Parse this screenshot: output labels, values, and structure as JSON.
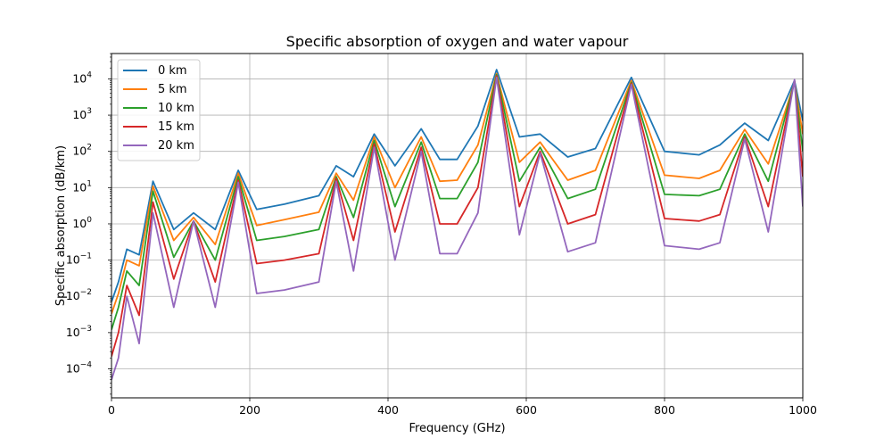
{
  "chart_data": {
    "type": "line",
    "title": "Specific absorption of oxygen and water vapour",
    "xlabel": "Frequency (GHz)",
    "ylabel": "Specific absorption (dB/km)",
    "xlim": [
      0,
      1000
    ],
    "ylim_log10": [
      -4.8,
      4.7
    ],
    "yscale": "log",
    "xticks": [
      0,
      200,
      400,
      600,
      800,
      1000
    ],
    "xtick_labels": [
      "0",
      "200",
      "400",
      "600",
      "800",
      "1000"
    ],
    "ytick_exponents": [
      -4,
      -3,
      -2,
      -1,
      0,
      1,
      2,
      3,
      4
    ],
    "ytick_base": "10",
    "grid": true,
    "legend_position": "top-left",
    "colors": [
      "#1f77b4",
      "#ff7f0e",
      "#2ca02c",
      "#d62728",
      "#9467bd"
    ],
    "series": [
      {
        "name": "0 km",
        "x": [
          0,
          10,
          22.2,
          40,
          60,
          90,
          118.75,
          150,
          183.3,
          210,
          250,
          300,
          325,
          350,
          380,
          410,
          448,
          475,
          500,
          530,
          557,
          590,
          620,
          660,
          700,
          752,
          800,
          850,
          880,
          916,
          950,
          988,
          1000
        ],
        "y": [
          0.007,
          0.025,
          0.2,
          0.14,
          15,
          0.7,
          2,
          0.7,
          30,
          2.5,
          3.5,
          6,
          40,
          20,
          300,
          40,
          420,
          60,
          60,
          500,
          18000,
          250,
          300,
          70,
          120,
          11000,
          100,
          80,
          150,
          600,
          200,
          9000,
          700
        ]
      },
      {
        "name": "5 km",
        "x": [
          0,
          10,
          22.2,
          40,
          60,
          90,
          118.75,
          150,
          183.3,
          210,
          250,
          300,
          325,
          350,
          380,
          410,
          448,
          475,
          500,
          530,
          557,
          590,
          620,
          660,
          700,
          752,
          800,
          850,
          880,
          916,
          950,
          988,
          1000
        ],
        "y": [
          0.0033,
          0.012,
          0.1,
          0.07,
          11,
          0.35,
          1.5,
          0.27,
          25,
          0.9,
          1.3,
          2.1,
          25,
          4.5,
          250,
          10,
          250,
          15,
          16,
          150,
          14000,
          50,
          180,
          16,
          30,
          9000,
          22,
          18,
          30,
          400,
          45,
          8000,
          300
        ]
      },
      {
        "name": "10 km",
        "x": [
          0,
          10,
          22.2,
          40,
          60,
          90,
          118.75,
          150,
          183.3,
          210,
          250,
          300,
          325,
          350,
          380,
          410,
          448,
          475,
          500,
          530,
          557,
          590,
          620,
          660,
          700,
          752,
          800,
          850,
          880,
          916,
          950,
          988,
          1000
        ],
        "y": [
          0.0012,
          0.005,
          0.05,
          0.02,
          8,
          0.12,
          1.2,
          0.1,
          20,
          0.35,
          0.45,
          0.7,
          20,
          1.5,
          200,
          3,
          180,
          5,
          5,
          50,
          13000,
          15,
          130,
          5,
          9,
          8000,
          6.5,
          6,
          9,
          300,
          15,
          8500,
          100
        ]
      },
      {
        "name": "15 km",
        "x": [
          0,
          10,
          22.2,
          40,
          60,
          90,
          118.75,
          150,
          183.3,
          210,
          250,
          300,
          325,
          350,
          380,
          410,
          448,
          475,
          500,
          530,
          557,
          590,
          620,
          660,
          700,
          752,
          800,
          850,
          880,
          916,
          950,
          988,
          1000
        ],
        "y": [
          0.00022,
          0.001,
          0.02,
          0.003,
          4,
          0.03,
          1.2,
          0.025,
          16,
          0.08,
          0.1,
          0.15,
          18,
          0.35,
          160,
          0.6,
          130,
          1,
          1,
          10,
          12000,
          3,
          100,
          1,
          1.8,
          7500,
          1.4,
          1.2,
          1.8,
          250,
          3,
          9000,
          20
        ]
      },
      {
        "name": "20 km",
        "x": [
          0,
          10,
          22.2,
          40,
          60,
          90,
          118.75,
          150,
          183.3,
          210,
          250,
          300,
          325,
          350,
          380,
          410,
          448,
          475,
          500,
          530,
          557,
          590,
          620,
          660,
          700,
          752,
          800,
          850,
          880,
          916,
          950,
          988,
          1000
        ],
        "y": [
          5e-05,
          0.0002,
          0.01,
          0.0005,
          2,
          0.005,
          1.2,
          0.005,
          14,
          0.012,
          0.015,
          0.025,
          15,
          0.05,
          130,
          0.1,
          100,
          0.15,
          0.15,
          2,
          11000,
          0.5,
          90,
          0.17,
          0.3,
          7000,
          0.25,
          0.2,
          0.3,
          220,
          0.6,
          9500,
          3
        ]
      }
    ]
  }
}
